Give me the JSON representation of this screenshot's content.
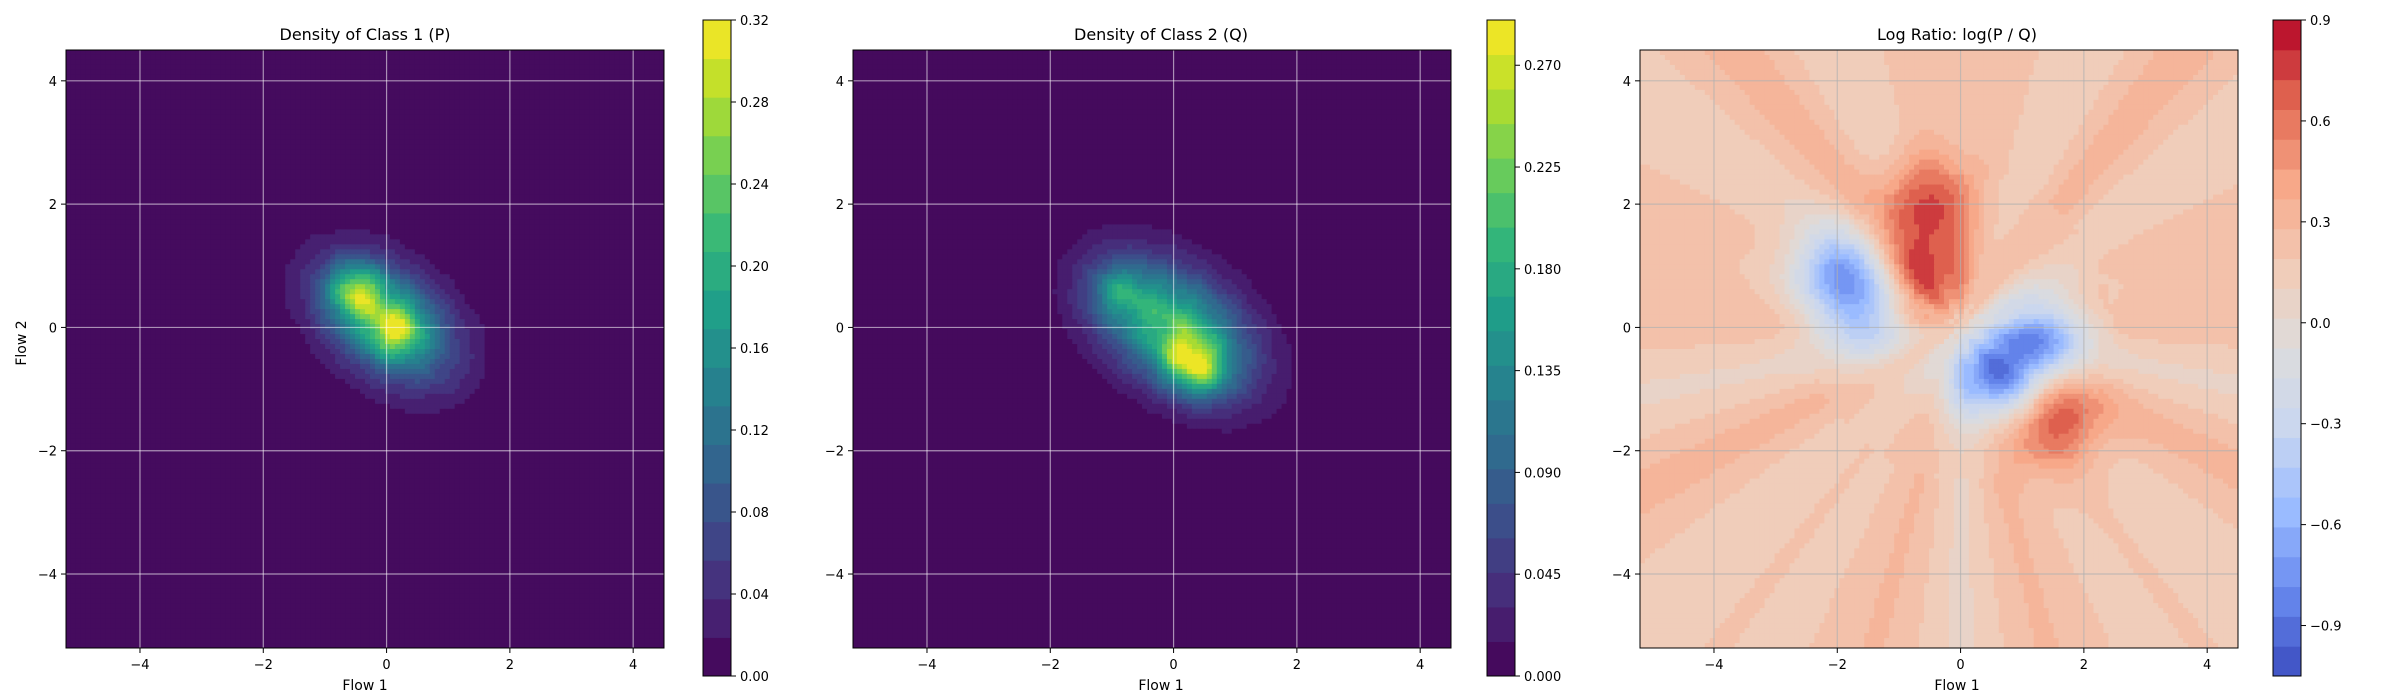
{
  "chart_data": [
    {
      "type": "heatmap",
      "title": "Density of Class 1 (P)",
      "xlabel": "Flow 1",
      "ylabel": "Flow 2",
      "xlim": [
        -5.2,
        4.5
      ],
      "ylim": [
        -5.2,
        4.5
      ],
      "xticks": [
        -4,
        -2,
        0,
        2,
        4
      ],
      "yticks": [
        -4,
        -2,
        0,
        2,
        4
      ],
      "grid": true,
      "colormap": "viridis",
      "levels": 17,
      "colorbar": {
        "min": 0.0,
        "max": 0.32,
        "ticks": [
          "0.00",
          "0.04",
          "0.08",
          "0.12",
          "0.16",
          "0.20",
          "0.24",
          "0.28",
          "0.32"
        ]
      },
      "density": {
        "center": [
          0.0,
          0.1
        ],
        "sd": [
          0.85,
          0.55
        ],
        "rotation_deg": -38,
        "hotspots": [
          {
            "x": -0.5,
            "y": 0.6,
            "value": 0.32
          },
          {
            "x": 0.15,
            "y": -0.05,
            "value": 0.29
          }
        ]
      }
    },
    {
      "type": "heatmap",
      "title": "Density of Class 2 (Q)",
      "xlabel": "Flow 1",
      "ylabel": "",
      "xlim": [
        -5.2,
        4.5
      ],
      "ylim": [
        -5.2,
        4.5
      ],
      "xticks": [
        -4,
        -2,
        0,
        2,
        4
      ],
      "yticks": [
        -4,
        -2,
        0,
        2,
        4
      ],
      "grid": true,
      "colormap": "viridis",
      "levels": 19,
      "colorbar": {
        "min": 0.0,
        "max": 0.29,
        "ticks": [
          "0.000",
          "0.045",
          "0.090",
          "0.135",
          "0.180",
          "0.225",
          "0.270"
        ]
      },
      "density": {
        "center": [
          0.0,
          0.0
        ],
        "sd": [
          0.95,
          0.6
        ],
        "rotation_deg": -35,
        "hotspots": [
          {
            "x": -0.9,
            "y": 0.6,
            "value": 0.24
          },
          {
            "x": 0.2,
            "y": -0.5,
            "value": 0.27
          },
          {
            "x": 0.5,
            "y": -0.75,
            "value": 0.26
          }
        ]
      }
    },
    {
      "type": "heatmap",
      "title": "Log Ratio: log(P / Q)",
      "xlabel": "Flow 1",
      "ylabel": "",
      "xlim": [
        -5.2,
        4.5
      ],
      "ylim": [
        -5.2,
        4.5
      ],
      "xticks": [
        -4,
        -2,
        0,
        2,
        4
      ],
      "yticks": [
        -4,
        -2,
        0,
        2,
        4
      ],
      "grid": true,
      "colormap": "coolwarm",
      "levels": 22,
      "colorbar": {
        "min": -1.05,
        "max": 0.9,
        "ticks": [
          "−0.9",
          "−0.6",
          "−0.3",
          "0.0",
          "0.3",
          "0.6",
          "0.9"
        ]
      },
      "background_value": 0.2,
      "features": [
        {
          "x": -2.0,
          "y": 0.9,
          "value": -0.55
        },
        {
          "x": -1.5,
          "y": 0.2,
          "value": -0.4
        },
        {
          "x": 0.5,
          "y": -0.8,
          "value": -0.75
        },
        {
          "x": 1.3,
          "y": -0.2,
          "value": -0.6
        },
        {
          "x": -0.6,
          "y": 2.0,
          "value": 0.75
        },
        {
          "x": -0.6,
          "y": 0.8,
          "value": 0.8
        },
        {
          "x": 1.5,
          "y": -1.5,
          "value": 0.8
        }
      ]
    }
  ]
}
